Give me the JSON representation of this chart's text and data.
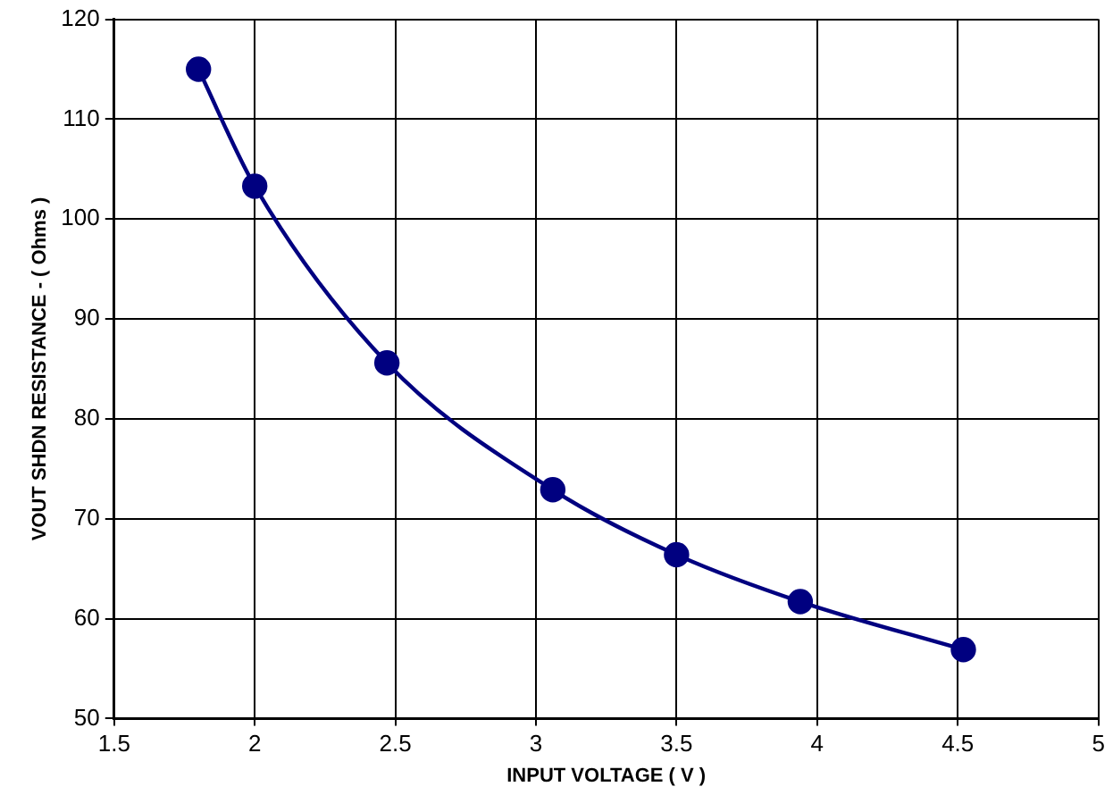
{
  "chart_data": {
    "type": "line",
    "xlabel": "INPUT VOLTAGE ( V )",
    "ylabel": "VOUT SHDN RESISTANCE - ( Ohms )",
    "x": [
      1.8,
      2.0,
      2.47,
      3.06,
      3.5,
      3.94,
      4.52
    ],
    "series": [
      {
        "color": "#000080",
        "values": [
          115.0,
          103.3,
          85.6,
          72.9,
          66.4,
          61.7,
          56.9
        ]
      }
    ],
    "xlim": [
      1.5,
      5
    ],
    "xticks": [
      1.5,
      2,
      2.5,
      3,
      3.5,
      4,
      4.5,
      5
    ],
    "ylim": [
      50,
      120
    ],
    "yticks": [
      50,
      60,
      70,
      80,
      90,
      100,
      110,
      120
    ],
    "grid": true,
    "legend": false,
    "marker": "circle",
    "line_style": "solid"
  }
}
